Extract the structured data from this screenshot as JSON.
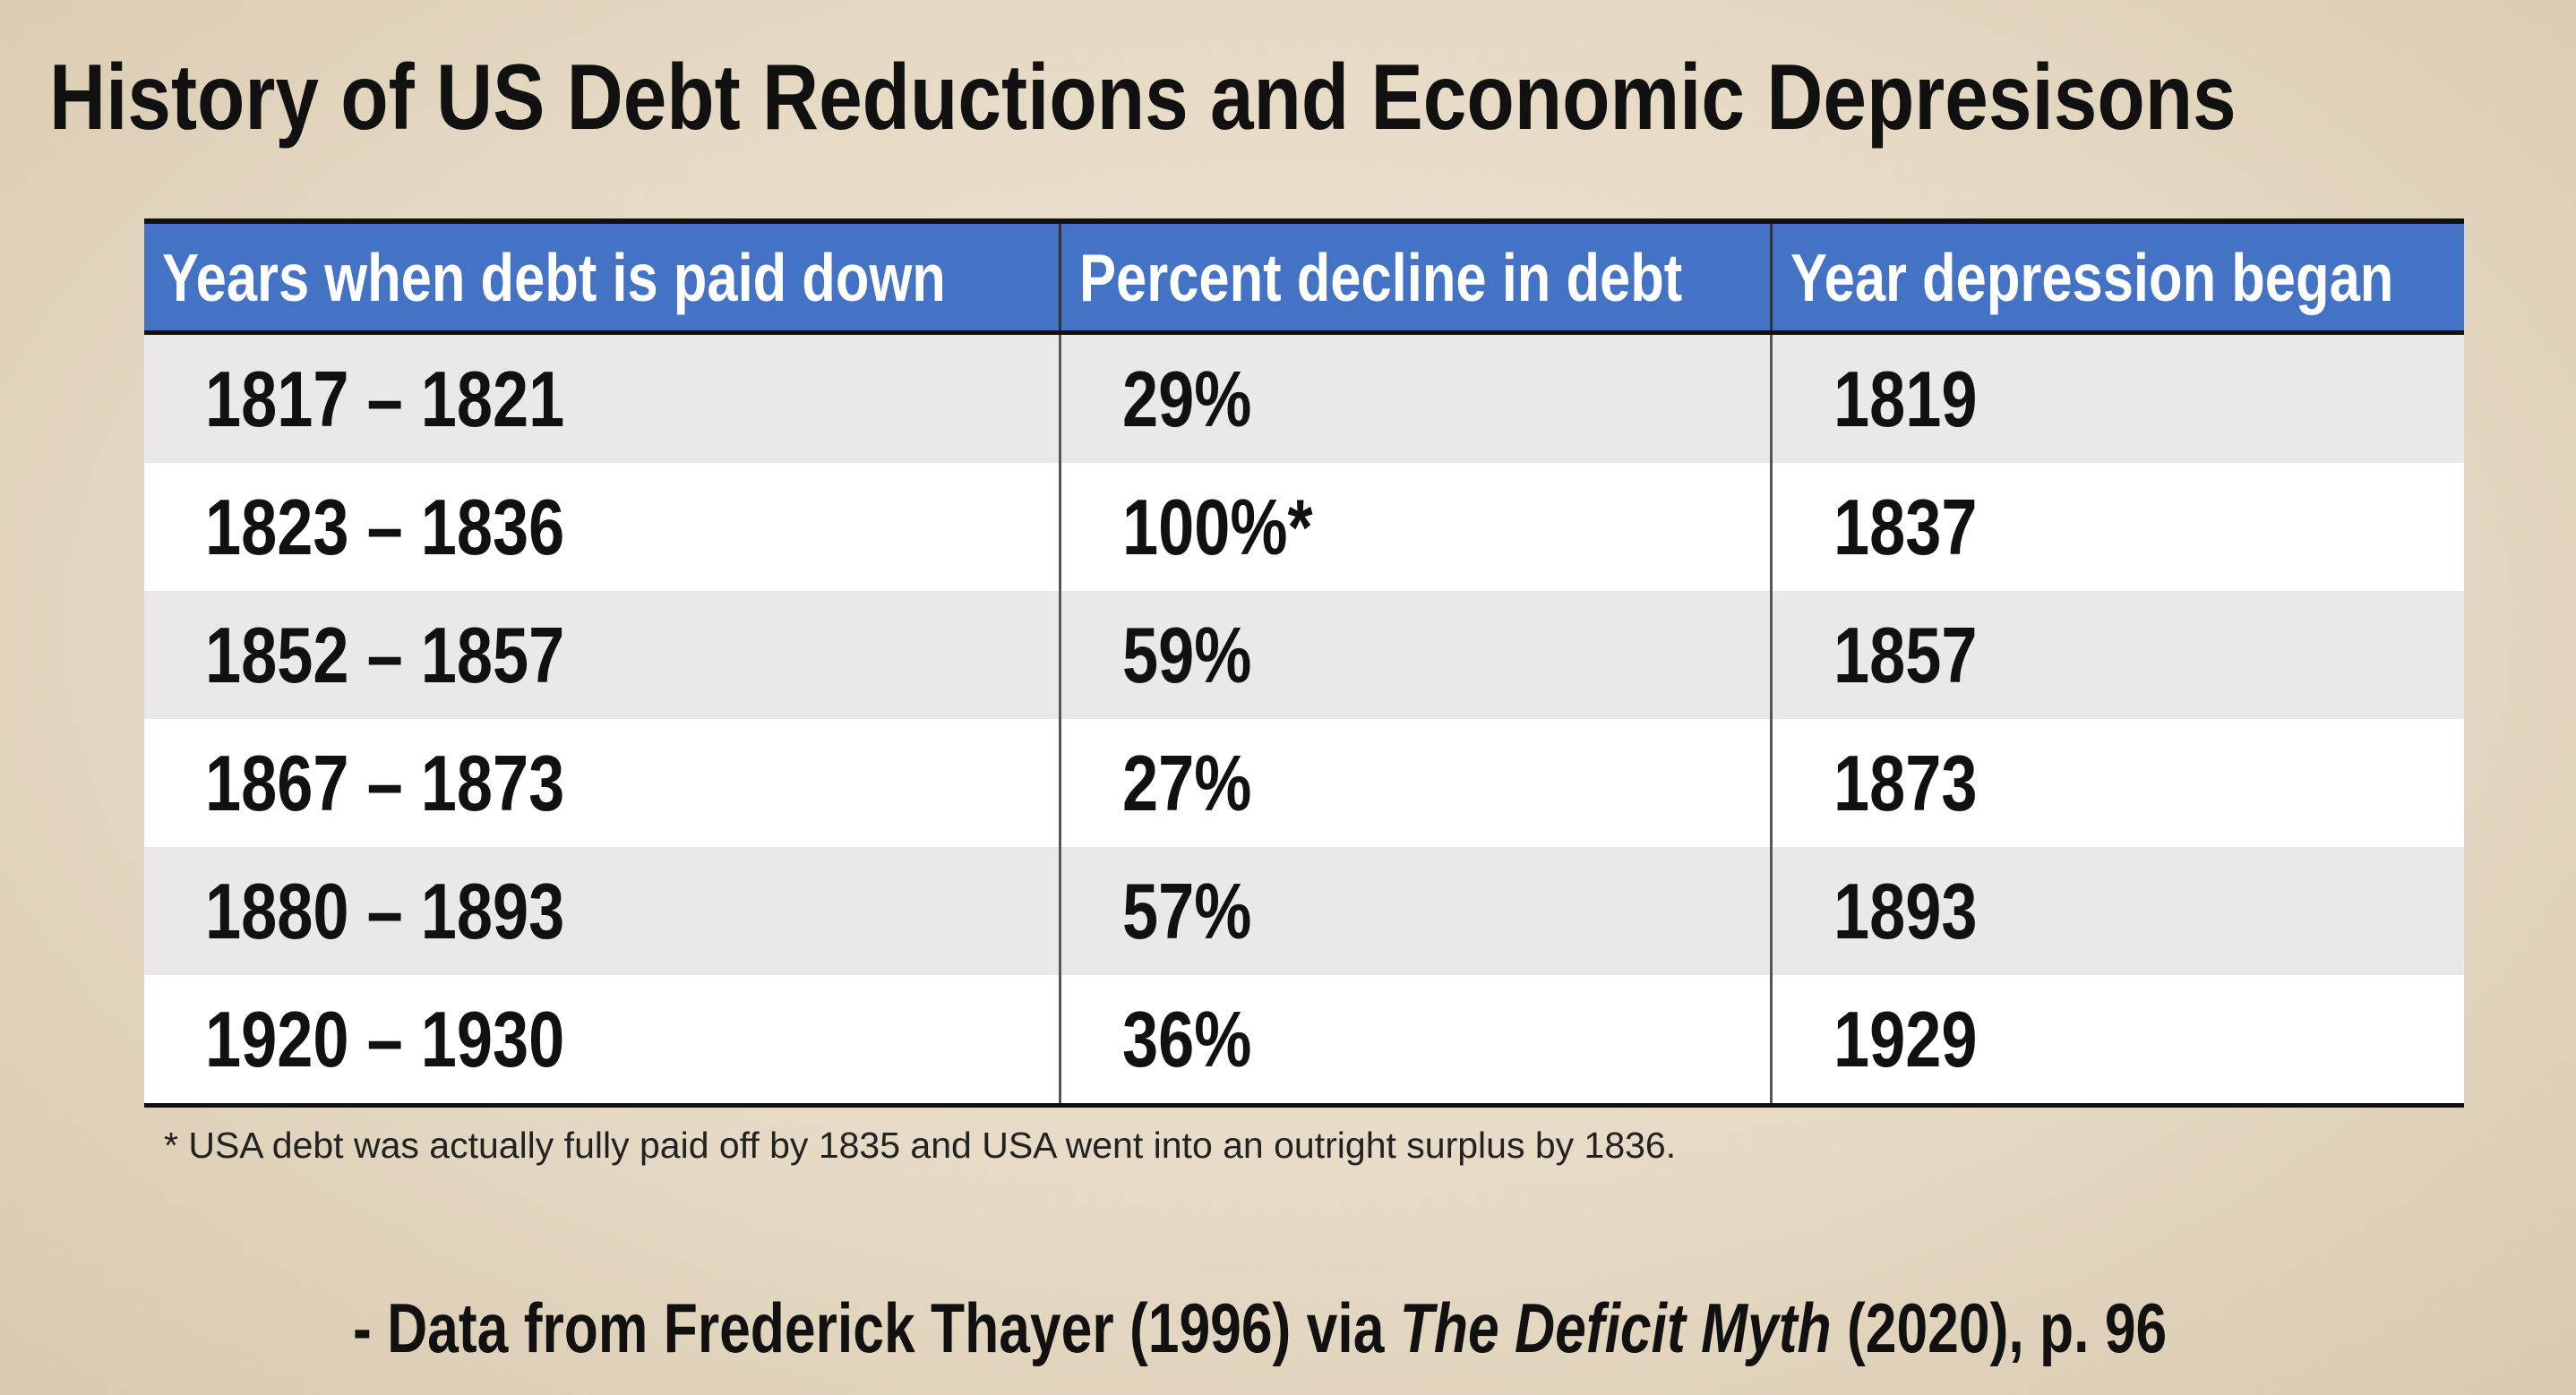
{
  "title": "History of US Debt Reductions and Economic Depresisons",
  "table": {
    "header": [
      "Years when debt is paid down",
      "Percent decline in debt",
      "Year depression began"
    ],
    "rows": [
      [
        "1817 – 1821",
        "29%",
        "1819"
      ],
      [
        "1823 – 1836",
        "100%*",
        "1837"
      ],
      [
        "1852 – 1857",
        "59%",
        "1857"
      ],
      [
        "1867 – 1873",
        "27%",
        "1873"
      ],
      [
        "1880 – 1893",
        "57%",
        "1893"
      ],
      [
        "1920 – 1930",
        "36%",
        "1929"
      ]
    ]
  },
  "footnote": "* USA debt was actually fully paid off by 1835 and USA went into an outright surplus by 1836.",
  "source": {
    "prefix": "- Data from Frederick Thayer (1996) via ",
    "book": "The Deficit Myth",
    "suffix": " (2020), p. 96"
  }
}
